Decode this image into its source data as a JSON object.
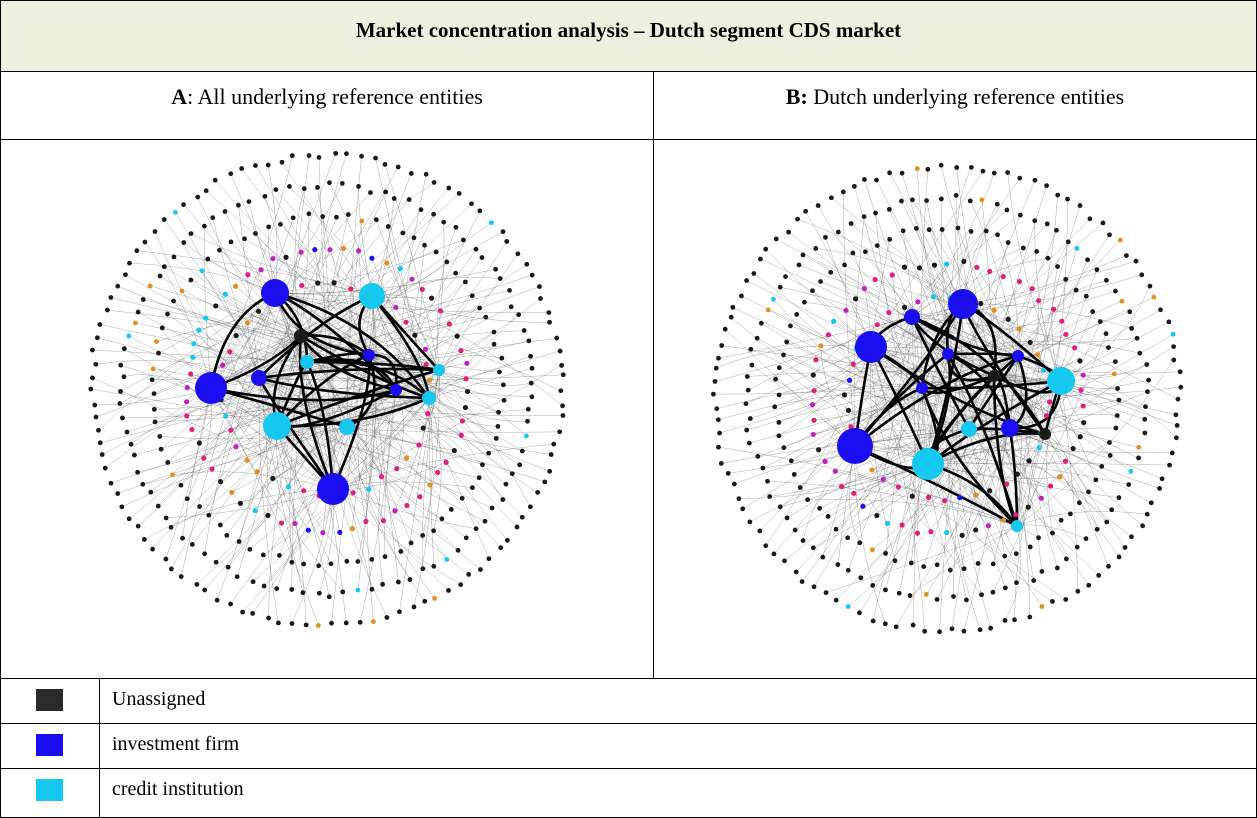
{
  "title": "Market concentration analysis – Dutch segment CDS market",
  "panels": [
    {
      "letter": "A",
      "caption": ": All underlying reference entities"
    },
    {
      "letter": "B:",
      "caption": " Dutch underlying reference entities"
    }
  ],
  "legend": [
    {
      "label": "Unassigned",
      "color": "#2b2b2b"
    },
    {
      "label": "investment firm",
      "color": "#1a0df0"
    },
    {
      "label": "credit institution",
      "color": "#14c8f0"
    }
  ],
  "colors": {
    "unassigned_node": "#1a1a1a",
    "investment_firm_node": "#1a0df0",
    "credit_institution_node": "#14c8f0",
    "other_pink": "#e0207a",
    "other_orange": "#e09020",
    "other_magenta": "#c020c0",
    "edge": "#555555"
  }
}
